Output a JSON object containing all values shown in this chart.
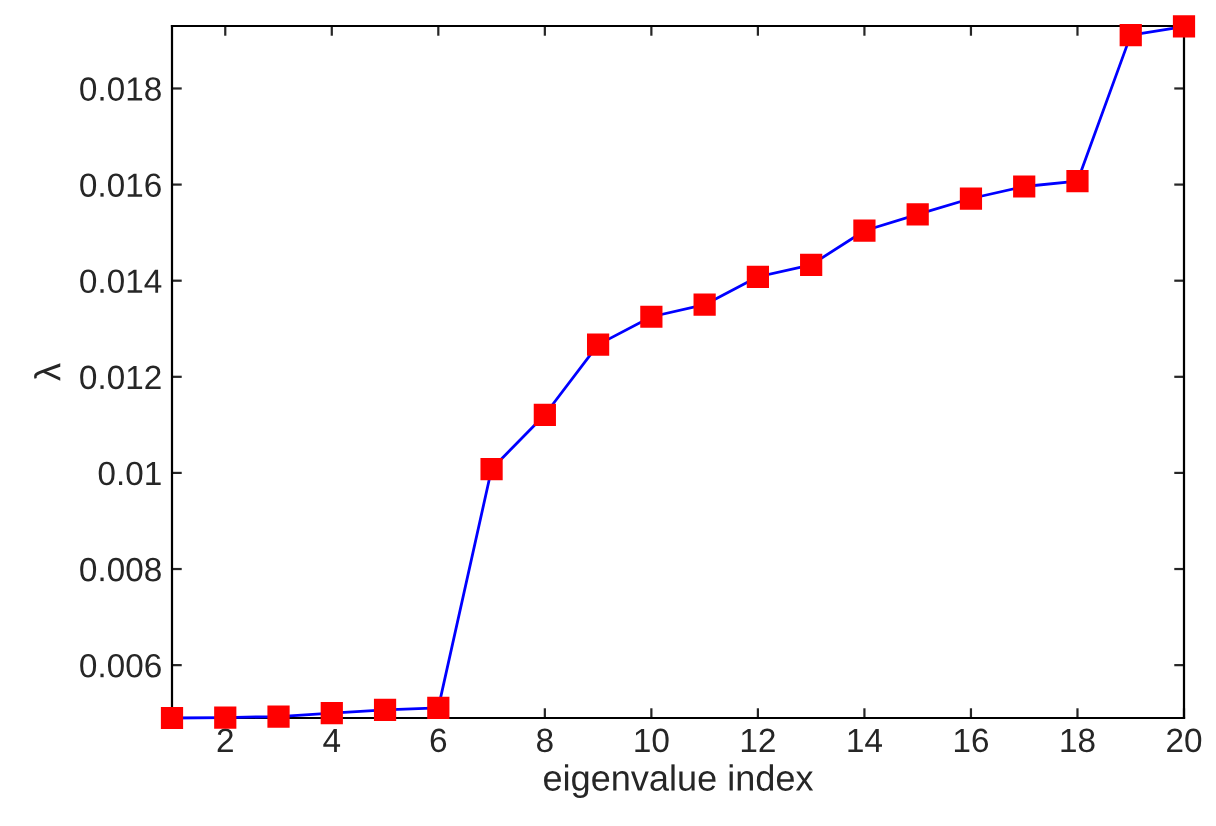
{
  "chart_data": {
    "type": "line",
    "xlabel": "eigenvalue index",
    "ylabel": "λ",
    "x": [
      1,
      2,
      3,
      4,
      5,
      6,
      7,
      8,
      9,
      10,
      11,
      12,
      13,
      14,
      15,
      16,
      17,
      18,
      19,
      20
    ],
    "series": [
      {
        "color": "#0000ff",
        "values": [
          0.0049,
          0.00491,
          0.00493,
          0.005,
          0.00507,
          0.00511,
          0.01008,
          0.01121,
          0.01267,
          0.01325,
          0.0135,
          0.01408,
          0.01433,
          0.01504,
          0.01538,
          0.01571,
          0.01596,
          0.01607,
          0.01911,
          0.01929
        ],
        "colors": [
          "#ff0000",
          "#ff0000",
          "#ff0000",
          "#ff0000",
          "#ff0000",
          "#ff0000",
          "#ff0000",
          "#ff0000",
          "#ff0000",
          "#ff0000",
          "#ff0000",
          "#ff0000",
          "#ff0000",
          "#ff0000",
          "#ff0000",
          "#ff0000",
          "#ff0000",
          "#ff0000",
          "#ff0000",
          "#ff0000"
        ]
      }
    ],
    "marker": "square",
    "line_style": "solid",
    "xlim": [
      1,
      20
    ],
    "xticks": [
      2,
      4,
      6,
      8,
      10,
      12,
      14,
      16,
      18,
      20
    ],
    "ylim": [
      0.0049,
      0.0193
    ],
    "yticks": [
      0.006,
      0.008,
      0.01,
      0.012,
      0.014,
      0.016,
      0.018
    ],
    "grid": false,
    "legend": false
  }
}
